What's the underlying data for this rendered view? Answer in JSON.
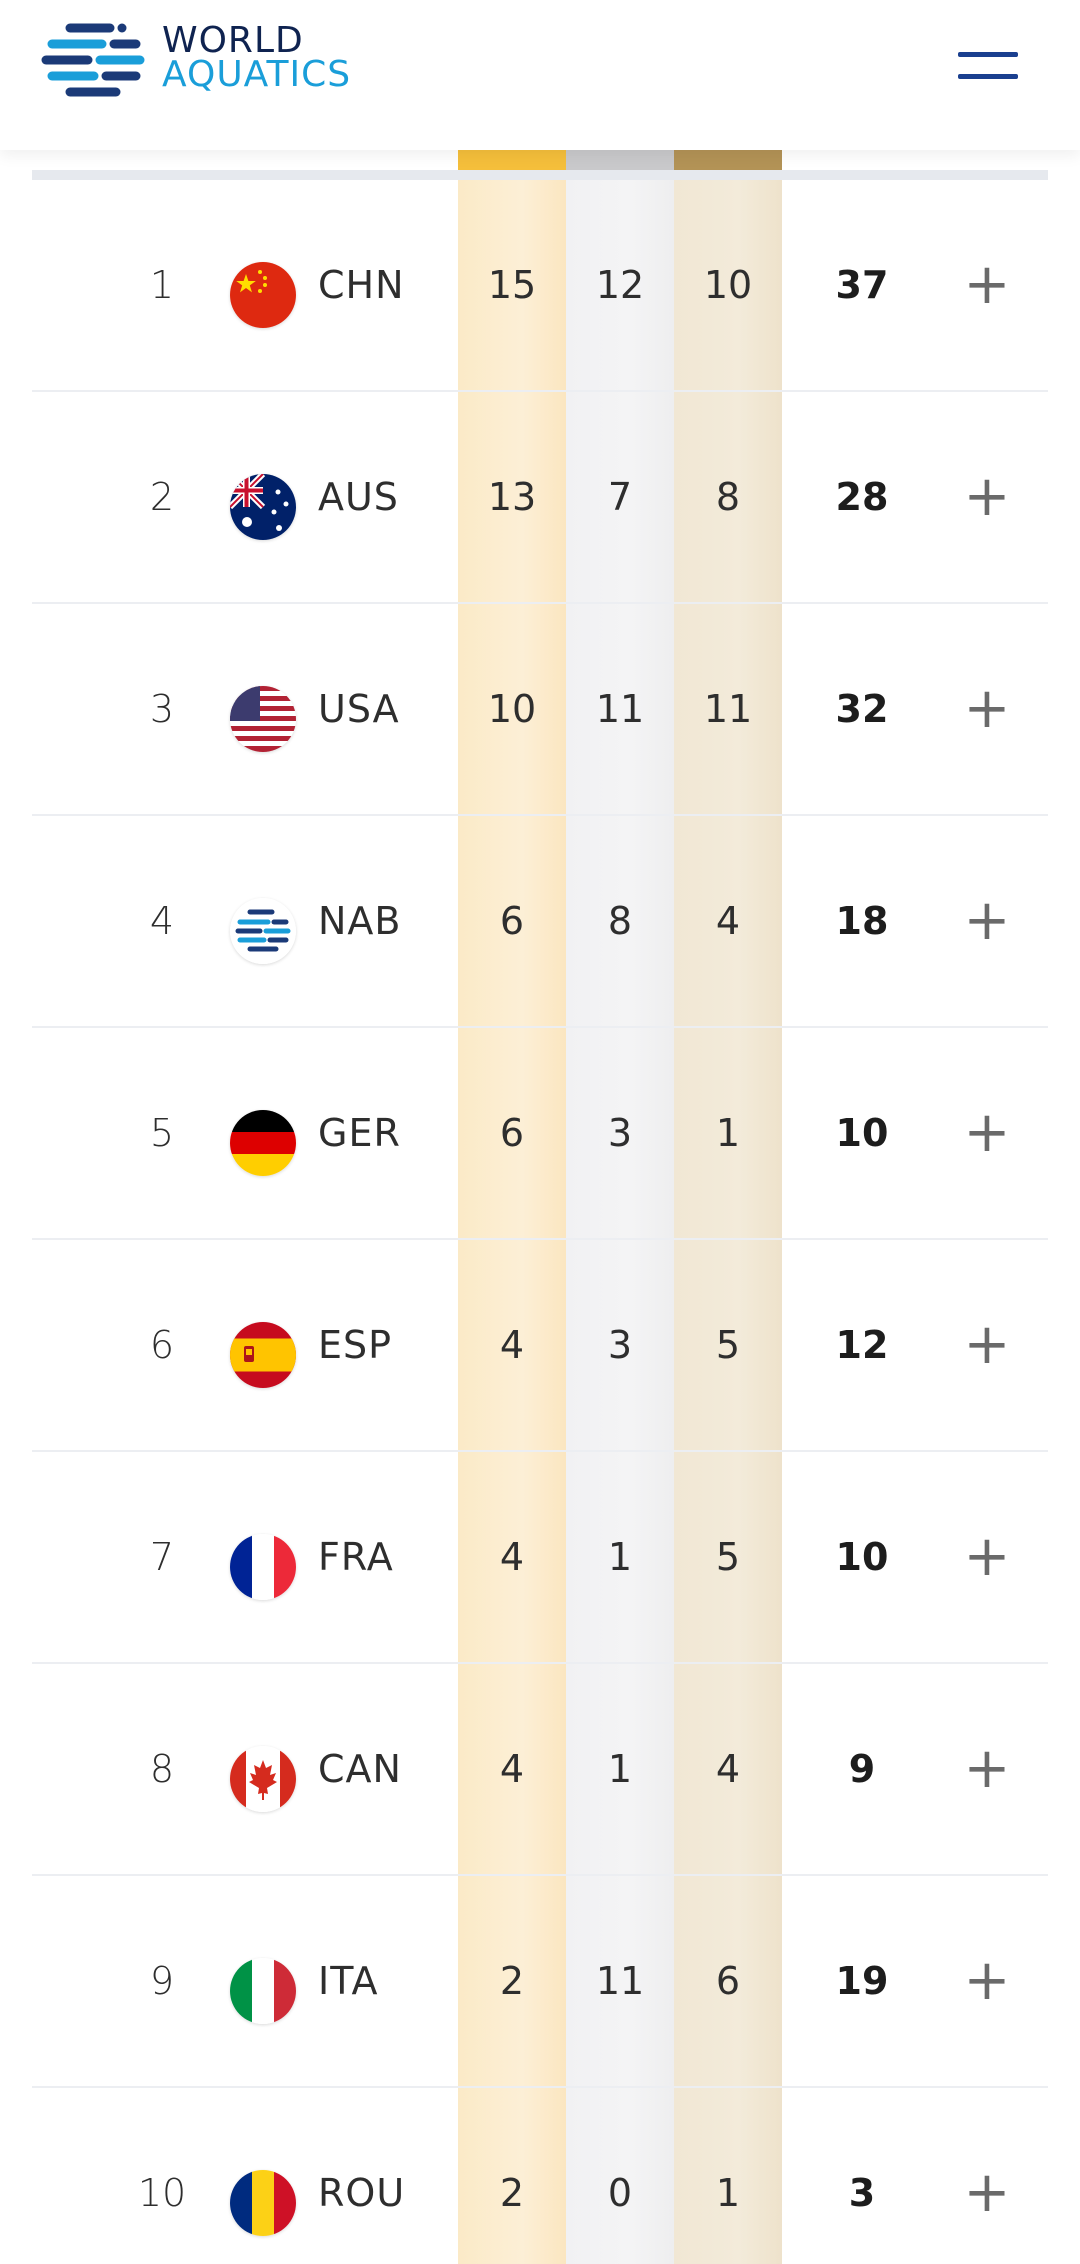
{
  "header": {
    "brand_line1": "WORLD",
    "brand_line2": "AQUATICS",
    "logo_icon": "world-aquatics-logo-icon",
    "menu_icon": "hamburger-menu-icon"
  },
  "colors": {
    "gold": "#f5bf3b",
    "silver": "#c9c9cb",
    "bronze": "#b39356",
    "brand_navy": "#0f2350",
    "brand_blue": "#1a9ed9"
  },
  "medal_table": {
    "rows": [
      {
        "rank": "1",
        "code": "CHN",
        "gold": "15",
        "silver": "12",
        "bronze": "10",
        "total": "37",
        "expand": "+",
        "flag_icon": "flag-china-icon"
      },
      {
        "rank": "2",
        "code": "AUS",
        "gold": "13",
        "silver": "7",
        "bronze": "8",
        "total": "28",
        "expand": "+",
        "flag_icon": "flag-australia-icon"
      },
      {
        "rank": "3",
        "code": "USA",
        "gold": "10",
        "silver": "11",
        "bronze": "11",
        "total": "32",
        "expand": "+",
        "flag_icon": "flag-usa-icon"
      },
      {
        "rank": "4",
        "code": "NAB",
        "gold": "6",
        "silver": "8",
        "bronze": "4",
        "total": "18",
        "expand": "+",
        "flag_icon": "flag-neutral-athletes-icon"
      },
      {
        "rank": "5",
        "code": "GER",
        "gold": "6",
        "silver": "3",
        "bronze": "1",
        "total": "10",
        "expand": "+",
        "flag_icon": "flag-germany-icon"
      },
      {
        "rank": "6",
        "code": "ESP",
        "gold": "4",
        "silver": "3",
        "bronze": "5",
        "total": "12",
        "expand": "+",
        "flag_icon": "flag-spain-icon"
      },
      {
        "rank": "7",
        "code": "FRA",
        "gold": "4",
        "silver": "1",
        "bronze": "5",
        "total": "10",
        "expand": "+",
        "flag_icon": "flag-france-icon"
      },
      {
        "rank": "8",
        "code": "CAN",
        "gold": "4",
        "silver": "1",
        "bronze": "4",
        "total": "9",
        "expand": "+",
        "flag_icon": "flag-canada-icon"
      },
      {
        "rank": "9",
        "code": "ITA",
        "gold": "2",
        "silver": "11",
        "bronze": "6",
        "total": "19",
        "expand": "+",
        "flag_icon": "flag-italy-icon"
      },
      {
        "rank": "10",
        "code": "ROU",
        "gold": "2",
        "silver": "0",
        "bronze": "1",
        "total": "3",
        "expand": "+",
        "flag_icon": "flag-romania-icon"
      }
    ]
  }
}
